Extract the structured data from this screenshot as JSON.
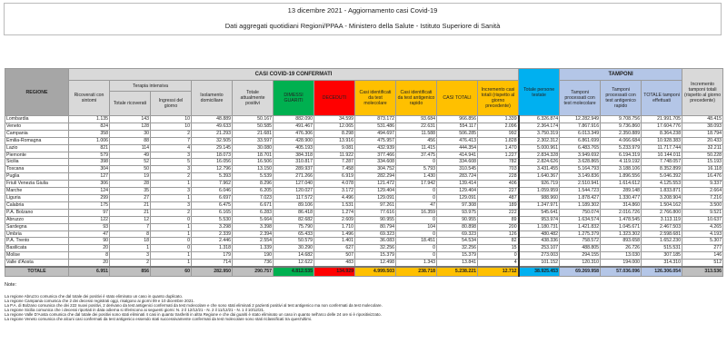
{
  "header": {
    "title": "13 dicembre 2021 - Aggiornamento casi Covid-19",
    "subtitle": "Dati aggregati quotidiani Regioni/PPAA - Ministero della Salute - Istituto Superiore di Sanità"
  },
  "table": {
    "group_casi": "CASI COVID-19 CONFERMATI",
    "group_tamponi": "TAMPONI",
    "group_terapia": "Terapia intensiva",
    "columns": {
      "regione": "REGIONE",
      "ricoverati": "Ricoverati con sintomi",
      "ti_totale": "Totale ricoverati",
      "ti_ingressi": "Ingressi del giorno",
      "isolamento": "Isolamento domiciliare",
      "positivi": "Totale attualmente positivi",
      "dimessi": "DIMESSI GUARITI",
      "deceduti": "DECEDUTI",
      "casi_mol": "Casi identificati da test molecolare",
      "casi_ant": "Casi identificati da test antigenico rapido",
      "casi_tot": "CASI TOTALI",
      "incr_casi": "Incremento casi totali (rispetto al giorno precedente)",
      "persone": "Totale persone testate",
      "tamp_mol": "Tamponi processati con test molecolare",
      "tamp_ant": "Tamponi processati con test antigenico rapido",
      "tamp_tot": "TOTALE tamponi effettuati",
      "incr_tamp": "Incremento tamponi totali (rispetto al giorno precedente)"
    },
    "rows": [
      [
        "Lombardia",
        "1.135",
        "143",
        "10",
        "48.889",
        "50.167",
        "882.090",
        "34.599",
        "873.172",
        "93.684",
        "966.856",
        "1.339",
        "6.326.874",
        "12.282.949",
        "9.708.756",
        "21.991.705",
        "48.415"
      ],
      [
        "Veneto",
        "824",
        "128",
        "10",
        "49.633",
        "50.585",
        "491.467",
        "12.065",
        "531.486",
        "22.631",
        "554.117",
        "2.096",
        "2.364.174",
        "7.867.916",
        "9.736.860",
        "17.604.776",
        "38.093"
      ],
      [
        "Campania",
        "358",
        "30",
        "2",
        "21.293",
        "21.681",
        "476.306",
        "8.298",
        "494.697",
        "11.588",
        "506.285",
        "992",
        "3.750.319",
        "6.013.349",
        "2.350.889",
        "8.364.238",
        "18.794"
      ],
      [
        "Emilia-Romagna",
        "1.006",
        "88",
        "7",
        "32.505",
        "33.597",
        "428.900",
        "13.916",
        "475.957",
        "456",
        "476.413",
        "1.828",
        "2.302.312",
        "6.861.699",
        "4.066.684",
        "10.928.383",
        "20.433"
      ],
      [
        "Lazio",
        "821",
        "114",
        "4",
        "29.145",
        "30.080",
        "405.193",
        "9.081",
        "432.939",
        "11.415",
        "444.354",
        "1.470",
        "5.000.961",
        "6.483.765",
        "5.233.979",
        "11.717.744",
        "32.211"
      ],
      [
        "Piemonte",
        "579",
        "49",
        "3",
        "18.073",
        "18.701",
        "384.318",
        "11.922",
        "377.466",
        "37.475",
        "414.941",
        "1.227",
        "2.834.328",
        "3.949.692",
        "6.194.319",
        "10.144.011",
        "50.228"
      ],
      [
        "Sicilia",
        "398",
        "52",
        "5",
        "16.056",
        "16.506",
        "310.817",
        "7.287",
        "334.608",
        "0",
        "334.608",
        "782",
        "2.824.626",
        "3.628.865",
        "4.119.192",
        "7.748.057",
        "15.193"
      ],
      [
        "Toscana",
        "304",
        "50",
        "3",
        "12.796",
        "13.150",
        "289.937",
        "7.458",
        "304.752",
        "5.793",
        "310.545",
        "703",
        "3.431.455",
        "5.164.793",
        "3.188.106",
        "8.352.899",
        "16.118"
      ],
      [
        "Puglia",
        "127",
        "19",
        "2",
        "5.393",
        "5.539",
        "271.266",
        "6.919",
        "282.294",
        "1.430",
        "283.724",
        "228",
        "1.640.367",
        "3.149.836",
        "1.896.556",
        "5.046.392",
        "16.476"
      ],
      [
        "Friuli Venezia Giulia",
        "306",
        "28",
        "1",
        "7.962",
        "8.296",
        "127.040",
        "4.078",
        "121.472",
        "17.942",
        "139.414",
        "406",
        "926.719",
        "2.510.941",
        "1.614.612",
        "4.125.553",
        "9.337"
      ],
      [
        "Marche",
        "124",
        "35",
        "3",
        "6.046",
        "6.205",
        "120.027",
        "3.172",
        "129.404",
        "0",
        "129.404",
        "227",
        "1.059.959",
        "1.544.723",
        "289.148",
        "1.833.871",
        "2.664"
      ],
      [
        "Liguria",
        "299",
        "27",
        "1",
        "6.697",
        "7.023",
        "117.572",
        "4.496",
        "129.091",
        "0",
        "129.091",
        "487",
        "988.960",
        "1.878.427",
        "1.330.477",
        "3.208.904",
        "7.216"
      ],
      [
        "Calabria",
        "175",
        "21",
        "3",
        "6.475",
        "6.671",
        "89.106",
        "1.531",
        "97.261",
        "47",
        "97.308",
        "189",
        "1.247.971",
        "1.189.302",
        "314.860",
        "1.504.162",
        "3.500"
      ],
      [
        "P.A. Bolzano",
        "97",
        "21",
        "2",
        "6.165",
        "6.283",
        "86.418",
        "1.274",
        "77.616",
        "16.359",
        "93.975",
        "222",
        "545.641",
        "750.074",
        "2.016.726",
        "2.766.800",
        "9.521"
      ],
      [
        "Abruzzo",
        "122",
        "12",
        "0",
        "5.530",
        "5.664",
        "82.682",
        "2.609",
        "90.955",
        "0",
        "90.955",
        "89",
        "953.974",
        "1.634.574",
        "1.478.545",
        "3.113.119",
        "10.637"
      ],
      [
        "Sardegna",
        "93",
        "7",
        "1",
        "3.298",
        "3.398",
        "75.790",
        "1.710",
        "80.794",
        "104",
        "80.898",
        "200",
        "1.180.731",
        "1.421.832",
        "1.045.671",
        "2.467.503",
        "4.265"
      ],
      [
        "Umbria",
        "47",
        "8",
        "1",
        "2.339",
        "2.394",
        "65.433",
        "1.496",
        "69.323",
        "0",
        "69.323",
        "126",
        "480.482",
        "1.275.379",
        "1.323.302",
        "2.598.681",
        "4.193"
      ],
      [
        "P.A. Trento",
        "90",
        "18",
        "0",
        "2.446",
        "2.554",
        "50.579",
        "1.401",
        "36.083",
        "18.451",
        "54.534",
        "82",
        "438.336",
        "758.572",
        "893.658",
        "1.652.230",
        "5.307"
      ],
      [
        "Basilicata",
        "20",
        "1",
        "0",
        "1.318",
        "1.339",
        "30.290",
        "627",
        "32.256",
        "0",
        "32.256",
        "15",
        "253.107",
        "488.805",
        "26.726",
        "515.531",
        "277"
      ],
      [
        "Molise",
        "8",
        "3",
        "1",
        "179",
        "190",
        "14.682",
        "507",
        "15.379",
        "0",
        "15.379",
        "0",
        "273.003",
        "294.155",
        "13.030",
        "307.185",
        "146"
      ],
      [
        "Valle d'Aosta",
        "20",
        "2",
        "1",
        "714",
        "736",
        "12.622",
        "483",
        "12.498",
        "1.343",
        "13.841",
        "4",
        "101.152",
        "120.310",
        "194.000",
        "314.310",
        "512"
      ]
    ],
    "total": [
      "TOTALE",
      "6.951",
      "856",
      "60",
      "282.950",
      "290.757",
      "4.812.535",
      "134.929",
      "4.999.503",
      "238.718",
      "5.238.221",
      "12.712",
      "38.925.453",
      "69.269.958",
      "57.036.096",
      "126.306.054",
      "313.536"
    ]
  },
  "colors": {
    "dimessi": "#00b050",
    "deceduti": "#ff0000",
    "casi": "#ffc000",
    "persone": "#00b0f0",
    "tamponi": "#b4c6e7",
    "header_gray": "#d9d9d9"
  },
  "notes": {
    "label": "Note:",
    "lines": [
      "La regione Abruzzo comunica che dal totale dei positivi è stato eliminato un caso in quanto duplicato.",
      "La regione Campania comunica che 2 dei decessi registrati oggi, risalgono ai giorni 09 e 10 dicembre 2021.",
      "La P.A. di Bolzano comunica che dei 222 nuovi positivi, 2 derivano da test antigenici confermati da test molecolare e che sono stati eliminati 2 pazienti positivi al test antigenico ma non confermati da test molecolare.",
      "La regione Sicilia comunica che i decessi riportati in data odierna si riferiscono ai seguenti giorni: N. 2 il 12/12/21 - N. 2 il 11/12/21 - N. 1 il 10/12/21.",
      "La regione Valle D'Aosta comunica che dal totale dei positivi sono stati eliminati 4 casi in quanto trasferiti in altra Regione e che dai guariti è stato eliminato un caso in quanto nell'arco delle 24 ore si è ripositivizzato.",
      "La regione Veneto comunica che alcuni casi confermati da test antigenico essendo stati successivamente confermati da test molecolare sono stati riclassificati tra quest'ultimi."
    ]
  }
}
